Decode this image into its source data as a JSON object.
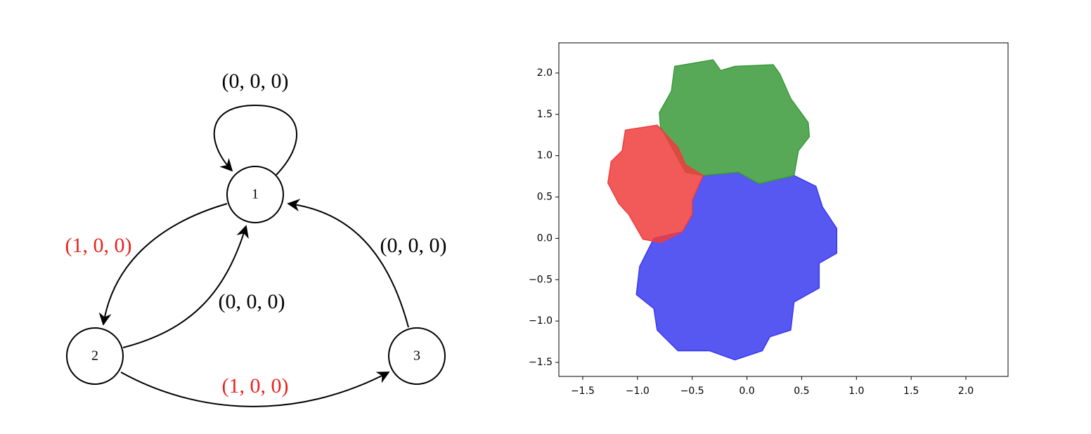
{
  "diagram": {
    "nodes": [
      {
        "label": "1"
      },
      {
        "label": "2"
      },
      {
        "label": "3"
      }
    ],
    "edges": [
      {
        "label": "(0, 0, 0)",
        "color": "#000000"
      },
      {
        "label": "(1, 0, 0)",
        "color": "#e8231f"
      },
      {
        "label": "(0, 0, 0)",
        "color": "#000000"
      },
      {
        "label": "(0, 0, 0)",
        "color": "#000000"
      },
      {
        "label": "(1, 0, 0)",
        "color": "#e8231f"
      }
    ]
  },
  "chart_data": {
    "type": "polygon",
    "xlim": [
      -1.718,
      2.385
    ],
    "ylim": [
      -1.67,
      2.365
    ],
    "xticks": [
      {
        "value": -1.5,
        "label": "−1.5"
      },
      {
        "value": -1.0,
        "label": "−1.0"
      },
      {
        "value": -0.5,
        "label": "−0.5"
      },
      {
        "value": 0.0,
        "label": "0.0"
      },
      {
        "value": 0.5,
        "label": "0.5"
      },
      {
        "value": 1.0,
        "label": "1.0"
      },
      {
        "value": 1.5,
        "label": "1.5"
      },
      {
        "value": 2.0,
        "label": "2.0"
      }
    ],
    "yticks": [
      {
        "value": -1.5,
        "label": "−1.5"
      },
      {
        "value": -1.0,
        "label": "−1.0"
      },
      {
        "value": -0.5,
        "label": "−0.5"
      },
      {
        "value": 0.0,
        "label": "0.0"
      },
      {
        "value": 0.5,
        "label": "0.5"
      },
      {
        "value": 1.0,
        "label": "1.0"
      },
      {
        "value": 1.5,
        "label": "1.5"
      },
      {
        "value": 2.0,
        "label": "2.0"
      }
    ],
    "series": [
      {
        "color": "#3a3af0",
        "x": [
          -0.4,
          -0.08,
          0.11,
          0.43,
          0.63,
          0.69,
          0.82,
          0.82,
          0.66,
          0.66,
          0.43,
          0.4,
          0.21,
          0.14,
          -0.11,
          -0.34,
          -0.63,
          -0.82,
          -0.85,
          -1.01,
          -0.98,
          -0.85,
          -0.59,
          -0.5,
          -0.5
        ],
        "y": [
          0.76,
          0.8,
          0.66,
          0.76,
          0.63,
          0.38,
          0.12,
          -0.18,
          -0.3,
          -0.6,
          -0.77,
          -1.11,
          -1.19,
          -1.36,
          -1.47,
          -1.36,
          -1.36,
          -1.11,
          -0.85,
          -0.68,
          -0.34,
          0.0,
          0.08,
          0.29,
          0.46
        ]
      },
      {
        "color": "#3a9a3a",
        "x": [
          -0.66,
          -0.31,
          -0.24,
          -0.11,
          0.24,
          0.3,
          0.4,
          0.56,
          0.57,
          0.47,
          0.43,
          0.11,
          -0.08,
          -0.4,
          -0.56,
          -0.79,
          -0.8,
          -0.69
        ],
        "y": [
          2.08,
          2.16,
          2.03,
          2.08,
          2.1,
          1.99,
          1.69,
          1.4,
          1.23,
          1.06,
          0.76,
          0.66,
          0.8,
          0.76,
          0.8,
          1.35,
          1.52,
          1.78
        ]
      },
      {
        "color": "#f03c3c",
        "x": [
          -1.11,
          -0.82,
          -0.75,
          -0.63,
          -0.56,
          -0.4,
          -0.5,
          -0.5,
          -0.59,
          -0.79,
          -0.95,
          -1.08,
          -1.17,
          -1.27,
          -1.24,
          -1.14
        ],
        "y": [
          1.31,
          1.37,
          1.27,
          1.1,
          0.89,
          0.76,
          0.46,
          0.29,
          0.08,
          -0.05,
          -0.01,
          0.29,
          0.42,
          0.67,
          0.93,
          1.06
        ]
      }
    ]
  }
}
